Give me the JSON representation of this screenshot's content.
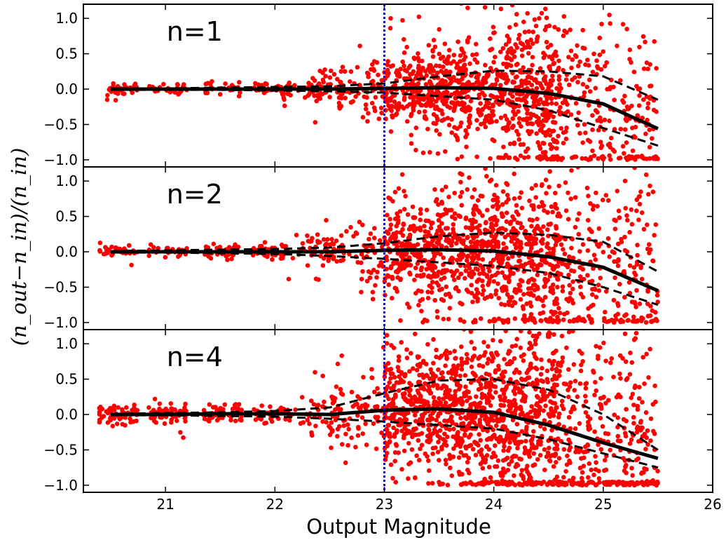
{
  "chart_data": {
    "type": "scatter",
    "xlabel": "Output Magnitude",
    "ylabel": "(n_out−n_in)/(n_in)",
    "xlim": [
      20.25,
      26.0
    ],
    "ylim": [
      -1.1,
      1.2
    ],
    "x_ticks": [
      "21",
      "22",
      "23",
      "24",
      "25",
      "26"
    ],
    "y_ticks": [
      "−1.0",
      "−0.5",
      "0.0",
      "0.5",
      "1.0"
    ],
    "grid": false,
    "vertical_reference_line": {
      "x": 23.0,
      "color": "#0000ff",
      "style": "dotted"
    },
    "colors": {
      "points": "#ff0000",
      "median": "#000000",
      "bounds": "#000000",
      "reference": "#0000ff"
    },
    "panels": [
      {
        "label": "n=1",
        "median": {
          "x": [
            20.5,
            21.0,
            21.5,
            22.0,
            22.5,
            23.0,
            23.5,
            24.0,
            24.5,
            25.0,
            25.5
          ],
          "y": [
            0.0,
            0.0,
            0.0,
            0.0,
            0.0,
            0.01,
            0.02,
            0.01,
            -0.06,
            -0.21,
            -0.56
          ]
        },
        "upper": {
          "x": [
            20.5,
            21.0,
            21.5,
            22.0,
            22.5,
            23.0,
            23.5,
            24.0,
            24.5,
            25.0,
            25.5
          ],
          "y": [
            0.01,
            0.01,
            0.02,
            0.03,
            0.04,
            0.08,
            0.18,
            0.26,
            0.25,
            0.18,
            -0.15
          ]
        },
        "lower": {
          "x": [
            20.5,
            21.0,
            21.5,
            22.0,
            22.5,
            23.0,
            23.5,
            24.0,
            24.5,
            25.0,
            25.5
          ],
          "y": [
            -0.01,
            -0.01,
            -0.01,
            -0.02,
            -0.03,
            -0.05,
            -0.1,
            -0.15,
            -0.3,
            -0.55,
            -0.8
          ]
        },
        "scatter": {
          "count": 1400,
          "profile": "n1"
        }
      },
      {
        "label": "n=2",
        "median": {
          "x": [
            20.5,
            21.0,
            21.5,
            22.0,
            22.5,
            23.0,
            23.5,
            24.0,
            24.5,
            25.0,
            25.5
          ],
          "y": [
            0.0,
            0.0,
            0.0,
            0.0,
            0.0,
            0.02,
            0.03,
            0.01,
            -0.07,
            -0.22,
            -0.55
          ]
        },
        "upper": {
          "x": [
            20.5,
            21.0,
            21.5,
            22.0,
            22.5,
            23.0,
            23.5,
            24.0,
            24.5,
            25.0,
            25.5
          ],
          "y": [
            0.01,
            0.02,
            0.03,
            0.04,
            0.06,
            0.12,
            0.22,
            0.27,
            0.24,
            0.14,
            -0.28
          ]
        },
        "lower": {
          "x": [
            20.5,
            21.0,
            21.5,
            22.0,
            22.5,
            23.0,
            23.5,
            24.0,
            24.5,
            25.0,
            25.5
          ],
          "y": [
            -0.01,
            -0.01,
            -0.02,
            -0.03,
            -0.06,
            -0.1,
            -0.15,
            -0.2,
            -0.3,
            -0.5,
            -0.75
          ]
        },
        "scatter": {
          "count": 1500,
          "profile": "n2"
        }
      },
      {
        "label": "n=4",
        "median": {
          "x": [
            20.5,
            21.0,
            21.5,
            22.0,
            22.5,
            23.0,
            23.5,
            24.0,
            24.5,
            25.0,
            25.5
          ],
          "y": [
            0.0,
            0.0,
            0.01,
            0.01,
            0.0,
            0.06,
            0.08,
            0.03,
            -0.15,
            -0.4,
            -0.62
          ]
        },
        "upper": {
          "x": [
            20.5,
            21.0,
            21.5,
            22.0,
            22.5,
            23.0,
            23.5,
            24.0,
            24.5,
            25.0,
            25.5
          ],
          "y": [
            0.01,
            0.02,
            0.03,
            0.05,
            0.1,
            0.3,
            0.48,
            0.5,
            0.35,
            0.0,
            -0.5
          ]
        },
        "lower": {
          "x": [
            20.5,
            21.0,
            21.5,
            22.0,
            22.5,
            23.0,
            23.5,
            24.0,
            24.5,
            25.0,
            25.5
          ],
          "y": [
            -0.01,
            -0.01,
            -0.02,
            -0.03,
            -0.06,
            -0.1,
            -0.15,
            -0.2,
            -0.35,
            -0.55,
            -0.75
          ]
        },
        "scatter": {
          "count": 1900,
          "profile": "n4"
        }
      }
    ]
  }
}
